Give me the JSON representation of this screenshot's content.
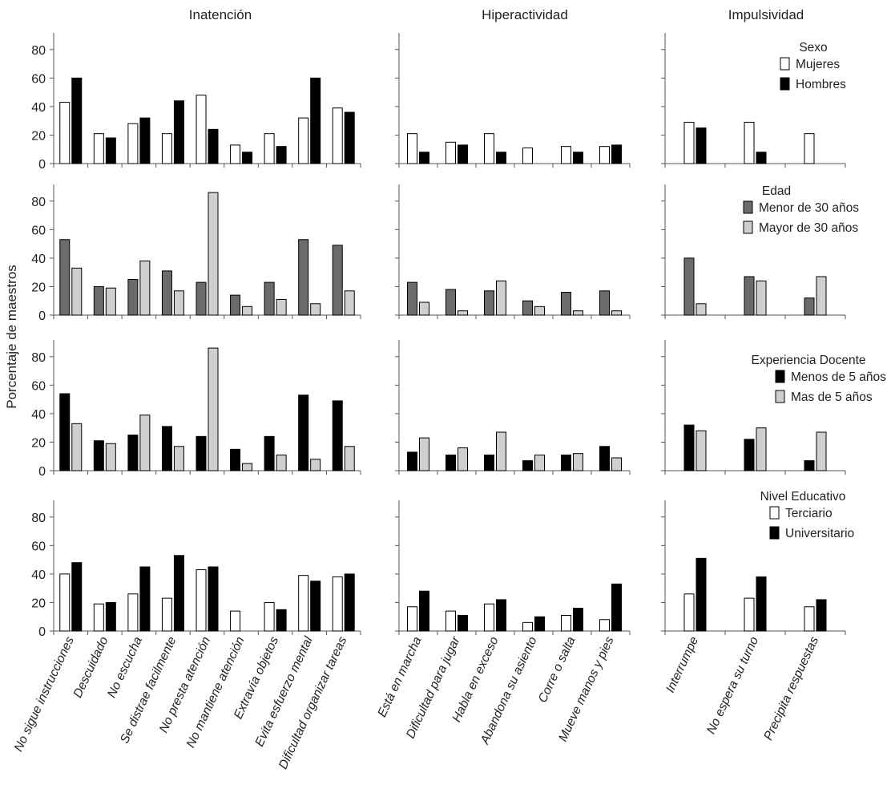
{
  "chart_data": {
    "type": "bar",
    "title": "",
    "ylabel": "Porcentaje de maestros",
    "ylim": [
      0,
      90
    ],
    "yticks": [
      0,
      20,
      40,
      60,
      80
    ],
    "columns": [
      {
        "title": "Inatención",
        "categories": [
          "No sigue instrucciones",
          "Descuidado",
          "No escucha",
          "Se distrae facilmente",
          "No presta atención",
          "No mantiene atención",
          "Extravía objetos",
          "Evita esfuerzo mental",
          "Dificultad organizar tareas"
        ]
      },
      {
        "title": "Hiperactividad",
        "categories": [
          "Está en marcha",
          "Dificultad para jugar",
          "Habla en exceso",
          "Abandona su asiento",
          "Corre o salta",
          "Mueve manos y pies"
        ]
      },
      {
        "title": "Impulsividad",
        "categories": [
          "Interrumpe",
          "No espera su turno",
          "Precipita respuestas"
        ]
      }
    ],
    "rows": [
      {
        "legend_title": "Sexo",
        "series_names": [
          "Mujeres",
          "Hombres"
        ],
        "colors": [
          "#ffffff",
          "#000000"
        ],
        "values": [
          [
            [
              43,
              60
            ],
            [
              21,
              18
            ],
            [
              28,
              32
            ],
            [
              21,
              44
            ],
            [
              48,
              24
            ],
            [
              13,
              8
            ],
            [
              21,
              12
            ],
            [
              32,
              60
            ],
            [
              39,
              36
            ]
          ],
          [
            [
              21,
              8
            ],
            [
              15,
              13
            ],
            [
              21,
              8
            ],
            [
              11,
              0
            ],
            [
              12,
              8
            ],
            [
              12,
              13
            ]
          ],
          [
            [
              29,
              25
            ],
            [
              29,
              8
            ],
            [
              21,
              0
            ]
          ]
        ]
      },
      {
        "legend_title": "Edad",
        "series_names": [
          "Menor de 30 años",
          "Mayor de 30 años"
        ],
        "colors": [
          "#6b6b6b",
          "#cfcfcf"
        ],
        "values": [
          [
            [
              53,
              33
            ],
            [
              20,
              19
            ],
            [
              25,
              38
            ],
            [
              31,
              17
            ],
            [
              23,
              86
            ],
            [
              14,
              6
            ],
            [
              23,
              11
            ],
            [
              53,
              8
            ],
            [
              49,
              17
            ]
          ],
          [
            [
              23,
              9
            ],
            [
              18,
              3
            ],
            [
              17,
              24
            ],
            [
              10,
              6
            ],
            [
              16,
              3
            ],
            [
              17,
              3
            ]
          ],
          [
            [
              40,
              8
            ],
            [
              27,
              24
            ],
            [
              12,
              27
            ]
          ]
        ]
      },
      {
        "legend_title": "Experiencia Docente",
        "series_names": [
          "Menos de 5 años",
          "Mas de 5 años"
        ],
        "colors": [
          "#000000",
          "#cfcfcf"
        ],
        "values": [
          [
            [
              54,
              33
            ],
            [
              21,
              19
            ],
            [
              25,
              39
            ],
            [
              31,
              17
            ],
            [
              24,
              86
            ],
            [
              15,
              5
            ],
            [
              24,
              11
            ],
            [
              53,
              8
            ],
            [
              49,
              17
            ]
          ],
          [
            [
              13,
              23
            ],
            [
              11,
              16
            ],
            [
              11,
              27
            ],
            [
              7,
              11
            ],
            [
              11,
              12
            ],
            [
              17,
              9
            ]
          ],
          [
            [
              32,
              28
            ],
            [
              22,
              30
            ],
            [
              7,
              27
            ]
          ]
        ]
      },
      {
        "legend_title": "Nivel Educativo",
        "series_names": [
          "Terciario",
          "Universitario"
        ],
        "colors": [
          "#ffffff",
          "#000000"
        ],
        "values": [
          [
            [
              40,
              48
            ],
            [
              19,
              20
            ],
            [
              26,
              45
            ],
            [
              23,
              53
            ],
            [
              43,
              45
            ],
            [
              14,
              0
            ],
            [
              20,
              15
            ],
            [
              39,
              35
            ],
            [
              38,
              40
            ]
          ],
          [
            [
              17,
              28
            ],
            [
              14,
              11
            ],
            [
              19,
              22
            ],
            [
              6,
              10
            ],
            [
              11,
              16
            ],
            [
              8,
              33
            ]
          ],
          [
            [
              26,
              51
            ],
            [
              23,
              38
            ],
            [
              17,
              22
            ]
          ]
        ]
      }
    ]
  }
}
